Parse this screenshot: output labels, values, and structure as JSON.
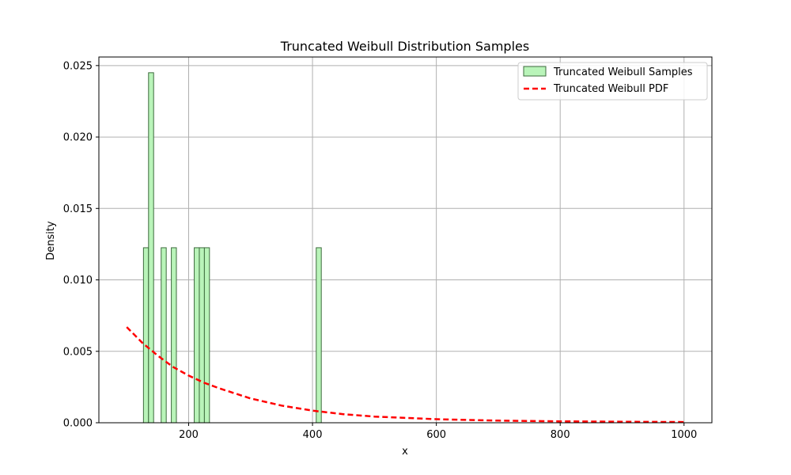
{
  "chart_data": {
    "type": "bar",
    "title": "Truncated Weibull Distribution Samples",
    "xlabel": "x",
    "ylabel": "Density",
    "xlim": [
      55,
      1045
    ],
    "ylim": [
      0,
      0.0256
    ],
    "xticks": [
      200,
      400,
      600,
      800,
      1000
    ],
    "yticks": [
      0.0,
      0.005,
      0.01,
      0.015,
      0.02,
      0.025
    ],
    "ytick_labels": [
      "0.000",
      "0.005",
      "0.010",
      "0.015",
      "0.020",
      "0.025"
    ],
    "grid": true,
    "legend_position": "top-right",
    "histogram": {
      "name": "Truncated Weibull Samples",
      "bin_width": 8.2,
      "bars": [
        {
          "x_left": 127.0,
          "density": 0.01225
        },
        {
          "x_left": 135.2,
          "density": 0.0245
        },
        {
          "x_left": 155.6,
          "density": 0.01225
        },
        {
          "x_left": 172.0,
          "density": 0.01225
        },
        {
          "x_left": 209.0,
          "density": 0.01225
        },
        {
          "x_left": 217.2,
          "density": 0.01225
        },
        {
          "x_left": 225.4,
          "density": 0.01225
        },
        {
          "x_left": 406.0,
          "density": 0.01225
        }
      ],
      "fill": "#b9f4b9",
      "edge": "#3d6b3d"
    },
    "pdf": {
      "name": "Truncated Weibull PDF",
      "color": "#ff0000",
      "x": [
        100,
        125,
        150,
        175,
        200,
        225,
        250,
        300,
        350,
        400,
        450,
        500,
        600,
        700,
        800,
        900,
        1000
      ],
      "y": [
        0.0067,
        0.0056,
        0.0047,
        0.0039,
        0.0033,
        0.0028,
        0.0024,
        0.0017,
        0.0012,
        0.00085,
        0.0006,
        0.00043,
        0.00025,
        0.00015,
        0.0001,
        7e-05,
        5e-05
      ]
    }
  }
}
